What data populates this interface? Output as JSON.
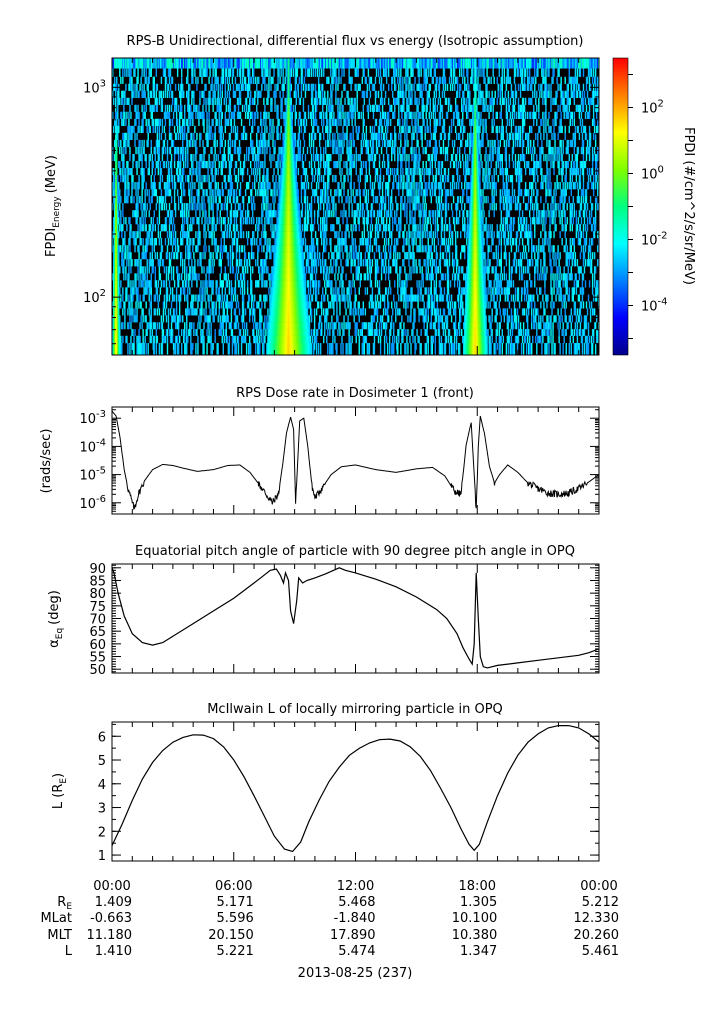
{
  "chart_data": [
    {
      "type": "heatmap",
      "title": "RPS-B  Unidirectional, differential flux vs energy (Isotropic assumption)",
      "ylabel_main": "FPDI",
      "ylabel_sub": "Energy",
      "ylabel_unit": "(MeV)",
      "yscale": "log",
      "ylim": [
        53,
        1380
      ],
      "yticks": [
        {
          "v": 100,
          "b": "10",
          "e": "2"
        },
        {
          "v": 1000,
          "b": "10",
          "e": "3"
        }
      ],
      "energy_channels_mev": [
        58,
        63,
        68,
        73,
        79,
        85,
        92,
        99,
        107,
        116,
        125,
        135,
        146,
        158,
        170,
        184,
        199,
        214,
        232,
        250,
        270,
        292,
        315,
        340,
        368,
        397,
        429,
        463,
        500,
        541,
        584,
        631,
        681,
        736,
        795,
        858,
        927,
        1001,
        1081,
        1168,
        1300
      ],
      "xlim_hours": [
        0,
        24
      ],
      "belt_passes_hours": [
        [
          0,
          0.4
        ],
        [
          7.6,
          9.8
        ],
        [
          17.3,
          18.5
        ]
      ],
      "background_log_flux": -5.5,
      "peak_log_flux": 1.5,
      "colorbar": {
        "label": "FPDI (#/cm^2/s/sr/MeV)",
        "scale": "log",
        "range_log": [
          -5.5,
          3.5
        ],
        "ticks": [
          {
            "v": -4,
            "b": "10",
            "e": "-4"
          },
          {
            "v": -2,
            "b": "10",
            "e": "-2"
          },
          {
            "v": 0,
            "b": "10",
            "e": "0"
          },
          {
            "v": 2,
            "b": "10",
            "e": "2"
          }
        ],
        "colors": [
          "#00008b",
          "#0000ff",
          "#0080ff",
          "#00ffff",
          "#00ff80",
          "#80ff00",
          "#ffff00",
          "#ff8000",
          "#ff0000"
        ]
      }
    },
    {
      "type": "line",
      "title": "RPS  Dose rate in Dosimeter 1 (front)",
      "ylabel": "(rads/sec)",
      "yscale": "log",
      "ylim": [
        4e-07,
        0.0025
      ],
      "yticks": [
        {
          "v": 1e-06,
          "b": "10",
          "e": "-6"
        },
        {
          "v": 1e-05,
          "b": "10",
          "e": "-5"
        },
        {
          "v": 0.0001,
          "b": "10",
          "e": "-4"
        },
        {
          "v": 0.001,
          "b": "10",
          "e": "-3"
        }
      ],
      "x_hours": [
        0,
        0.2,
        0.4,
        0.6,
        0.8,
        1.0,
        1.1,
        1.3,
        1.6,
        2.0,
        2.5,
        3.0,
        3.5,
        4.2,
        5.0,
        5.7,
        6.3,
        6.8,
        7.2,
        7.6,
        7.9,
        8.2,
        8.4,
        8.6,
        8.8,
        8.95,
        9.05,
        9.25,
        9.45,
        9.65,
        9.85,
        10.0,
        10.3,
        10.8,
        11.3,
        12.0,
        13.0,
        14.0,
        15.0,
        15.8,
        16.4,
        16.9,
        17.2,
        17.45,
        17.7,
        17.85,
        17.95,
        18.05,
        18.15,
        18.35,
        18.6,
        18.85,
        19.1,
        19.5,
        20.0,
        20.5,
        21.0,
        21.5,
        22.0,
        22.5,
        23.0,
        23.5,
        24.0
      ],
      "y_rads_per_sec": [
        0.0018,
        0.0012,
        0.0002,
        1.5e-05,
        3e-06,
        1e-06,
        6e-07,
        2e-06,
        6e-06,
        1.5e-05,
        2.3e-05,
        2.1e-05,
        1.7e-05,
        1.3e-05,
        1.5e-05,
        2.1e-05,
        2.2e-05,
        1.2e-05,
        5e-06,
        2e-06,
        1e-06,
        2e-06,
        2e-05,
        0.0003,
        0.0011,
        0.0004,
        1e-06,
        0.0008,
        0.001,
        0.0001,
        4e-06,
        1.5e-06,
        3e-06,
        1e-05,
        1.9e-05,
        2.2e-05,
        1.5e-05,
        1.2e-05,
        1.6e-05,
        1.8e-05,
        9e-06,
        2.5e-06,
        2e-06,
        0.00011,
        0.0007,
        1e-05,
        5e-07,
        0.0001,
        0.0012,
        0.0003,
        2e-05,
        5e-06,
        1e-05,
        2.2e-05,
        1.2e-05,
        5e-06,
        3.2e-06,
        2.2e-06,
        2e-06,
        2.2e-06,
        3.2e-06,
        5.5e-06,
        1e-05
      ]
    },
    {
      "type": "line",
      "title": "Equatorial pitch angle of particle with 90 degree pitch angle in OPQ",
      "ylabel_main": "α",
      "ylabel_sub": "Eq",
      "ylabel_unit": "(deg)",
      "ylim": [
        48.5,
        91.5
      ],
      "yticks": [
        50,
        55,
        60,
        65,
        70,
        75,
        80,
        85,
        90
      ],
      "x_hours": [
        0,
        0.1,
        0.3,
        0.6,
        1.0,
        1.5,
        2.0,
        2.5,
        3.0,
        4.0,
        5.0,
        6.0,
        6.5,
        7.0,
        7.4,
        7.8,
        8.1,
        8.3,
        8.45,
        8.55,
        8.7,
        8.8,
        8.95,
        9.1,
        9.2,
        9.4,
        9.6,
        10.0,
        10.5,
        11.2,
        11.5,
        12.0,
        13.0,
        14.0,
        15.0,
        16.0,
        16.5,
        17.0,
        17.3,
        17.6,
        17.75,
        17.85,
        17.95,
        18.05,
        18.15,
        18.3,
        18.5,
        19.0,
        20.0,
        21.0,
        22.0,
        23.0,
        23.5,
        24.0
      ],
      "y_deg": [
        90,
        88,
        80,
        71,
        64,
        60.5,
        59.5,
        60.5,
        63,
        68,
        73,
        78,
        81,
        84,
        86.5,
        89,
        89.5,
        87,
        84,
        88,
        85,
        73,
        68,
        77,
        86,
        84,
        85,
        86,
        87.5,
        90,
        89,
        88,
        85.5,
        82.5,
        78.5,
        73.5,
        70,
        64,
        58.5,
        54,
        52,
        60,
        88,
        70,
        55,
        51,
        50.5,
        51.5,
        52.5,
        53.5,
        54.5,
        55.5,
        56.5,
        58
      ]
    },
    {
      "type": "line",
      "title": "McIlwain L of locally mirroring particle in OPQ",
      "ylabel_main": "L (R",
      "ylabel_sub": "E",
      "ylabel_unit": ")",
      "ylim": [
        0.75,
        6.6
      ],
      "yticks": [
        1,
        2,
        3,
        4,
        5,
        6
      ],
      "x_hours": [
        0,
        0.5,
        1,
        1.5,
        2,
        2.5,
        3,
        3.5,
        4,
        4.5,
        5,
        5.5,
        6,
        6.5,
        7,
        7.5,
        8,
        8.5,
        8.9,
        9.3,
        9.7,
        10.2,
        10.7,
        11.2,
        11.7,
        12.2,
        12.7,
        13.2,
        13.7,
        14.2,
        14.7,
        15.2,
        15.7,
        16.2,
        16.7,
        17.2,
        17.6,
        17.85,
        18.1,
        18.5,
        19,
        19.5,
        20,
        20.5,
        21,
        21.5,
        22,
        22.5,
        23,
        23.5,
        24
      ],
      "y_re": [
        1.4,
        2.3,
        3.3,
        4.2,
        4.9,
        5.4,
        5.75,
        5.95,
        6.06,
        6.05,
        5.9,
        5.55,
        5.0,
        4.3,
        3.5,
        2.65,
        1.8,
        1.25,
        1.15,
        1.55,
        2.4,
        3.3,
        4.1,
        4.7,
        5.2,
        5.5,
        5.72,
        5.86,
        5.88,
        5.8,
        5.55,
        5.15,
        4.55,
        3.8,
        3.0,
        2.1,
        1.45,
        1.2,
        1.45,
        2.4,
        3.5,
        4.45,
        5.2,
        5.75,
        6.1,
        6.35,
        6.45,
        6.45,
        6.35,
        6.1,
        5.75
      ]
    }
  ],
  "x_axis": {
    "tick_labels": [
      "00:00",
      "06:00",
      "12:00",
      "18:00",
      "00:00"
    ],
    "ephemeris_row_labels": [
      {
        "main": "R",
        "sub": "E"
      },
      {
        "main": "MLat",
        "sub": ""
      },
      {
        "main": "MLT",
        "sub": ""
      },
      {
        "main": "L",
        "sub": ""
      }
    ],
    "ephemeris_values": [
      [
        "1.409",
        "5.171",
        "5.468",
        "1.305",
        "5.212"
      ],
      [
        "-0.663",
        "5.596",
        "-1.840",
        "10.100",
        "12.330"
      ],
      [
        "11.180",
        "20.150",
        "17.890",
        "10.380",
        "20.260"
      ],
      [
        "1.410",
        "5.221",
        "5.474",
        "1.347",
        "5.461"
      ]
    ],
    "date_label": "2013-08-25 (237)"
  }
}
